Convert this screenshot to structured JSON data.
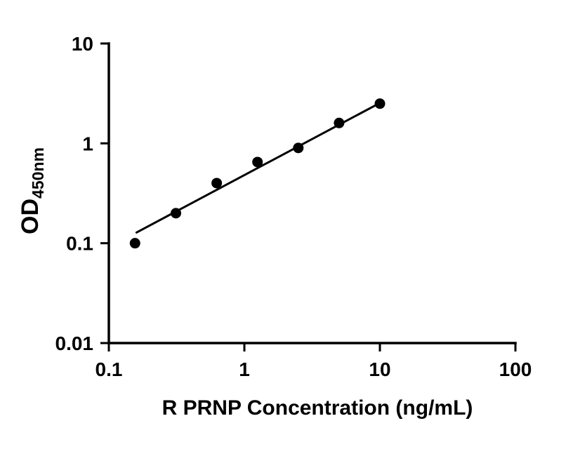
{
  "figure": {
    "background": "#ffffff"
  },
  "chart_data": {
    "type": "scatter",
    "title": "",
    "xlabel": "R PRNP Concentration (ng/mL)",
    "ylabel": "OD",
    "ylabel_subscript": "450nm",
    "x_scale": "log10",
    "y_scale": "log10",
    "xlim": [
      0.1,
      100
    ],
    "ylim": [
      0.01,
      10
    ],
    "x_ticks": [
      0.1,
      1,
      10,
      100
    ],
    "x_tick_labels": [
      "0.1",
      "1",
      "10",
      "100"
    ],
    "y_ticks": [
      0.01,
      0.1,
      1,
      10
    ],
    "y_tick_labels": [
      "0.01",
      "0.1",
      "1",
      "10"
    ],
    "grid": false,
    "legend": "none",
    "axis_color": "#000000",
    "series": [
      {
        "name": "fit-line",
        "type": "line",
        "color": "#000000",
        "x": [
          0.16,
          9.8
        ],
        "y": [
          0.128,
          2.5
        ]
      },
      {
        "name": "standard-points",
        "type": "scatter",
        "marker": "filled-circle",
        "marker_color": "#000000",
        "color": "#000000",
        "x": [
          0.156,
          0.3125,
          0.625,
          1.25,
          2.5,
          5,
          10
        ],
        "y": [
          0.1,
          0.2,
          0.4,
          0.65,
          0.9,
          1.6,
          2.5
        ]
      }
    ]
  }
}
